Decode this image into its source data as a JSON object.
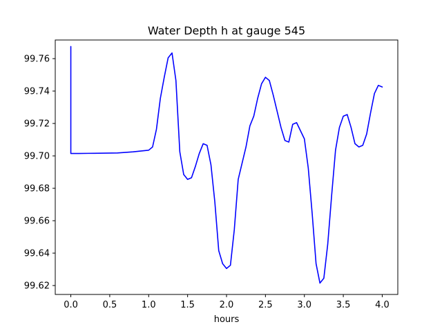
{
  "chart_data": {
    "type": "line",
    "title": "Water Depth h at gauge 545",
    "xlabel": "hours",
    "ylabel": "",
    "xlim": [
      -0.2,
      4.2
    ],
    "ylim": [
      99.6145,
      99.7715
    ],
    "x_ticks": [
      0.0,
      0.5,
      1.0,
      1.5,
      2.0,
      2.5,
      3.0,
      3.5,
      4.0
    ],
    "x_tick_labels": [
      "0.0",
      "0.5",
      "1.0",
      "1.5",
      "2.0",
      "2.5",
      "3.0",
      "3.5",
      "4.0"
    ],
    "y_ticks": [
      99.62,
      99.64,
      99.66,
      99.68,
      99.7,
      99.72,
      99.74,
      99.76
    ],
    "y_tick_labels": [
      "99.62",
      "99.64",
      "99.66",
      "99.68",
      "99.70",
      "99.72",
      "99.74",
      "99.76"
    ],
    "grid": false,
    "series": [
      {
        "color": "#0000ff",
        "x": [
          0.0,
          0.0,
          0.1,
          0.3,
          0.6,
          0.8,
          1.0,
          1.05,
          1.1,
          1.15,
          1.2,
          1.25,
          1.3,
          1.35,
          1.4,
          1.45,
          1.5,
          1.55,
          1.6,
          1.65,
          1.7,
          1.75,
          1.8,
          1.85,
          1.9,
          1.95,
          2.0,
          2.05,
          2.1,
          2.15,
          2.2,
          2.25,
          2.3,
          2.35,
          2.4,
          2.45,
          2.5,
          2.55,
          2.6,
          2.65,
          2.7,
          2.75,
          2.8,
          2.85,
          2.9,
          2.95,
          3.0,
          3.05,
          3.1,
          3.15,
          3.2,
          3.25,
          3.3,
          3.35,
          3.4,
          3.45,
          3.5,
          3.55,
          3.6,
          3.65,
          3.7,
          3.75,
          3.8,
          3.85,
          3.9,
          3.95,
          4.0
        ],
        "y": [
          99.7675,
          99.7015,
          99.7015,
          99.7016,
          99.7018,
          99.7025,
          99.7035,
          99.7055,
          99.7165,
          99.7355,
          99.7485,
          99.7605,
          99.7635,
          99.7465,
          99.7025,
          99.6885,
          99.6855,
          99.6865,
          99.6935,
          99.7015,
          99.7075,
          99.7065,
          99.6945,
          99.6715,
          99.6415,
          99.6335,
          99.6305,
          99.6325,
          99.6545,
          99.6855,
          99.6955,
          99.7055,
          99.7185,
          99.7245,
          99.7355,
          99.7445,
          99.7485,
          99.7465,
          99.7375,
          99.7275,
          99.7175,
          99.7095,
          99.7085,
          99.7195,
          99.7205,
          99.7155,
          99.7105,
          99.6925,
          99.6645,
          99.6335,
          99.6215,
          99.6245,
          99.6455,
          99.6755,
          99.7035,
          99.7175,
          99.7245,
          99.7255,
          99.7175,
          99.7075,
          99.7055,
          99.7065,
          99.7135,
          99.7265,
          99.7385,
          99.7435,
          99.7425
        ]
      }
    ]
  }
}
